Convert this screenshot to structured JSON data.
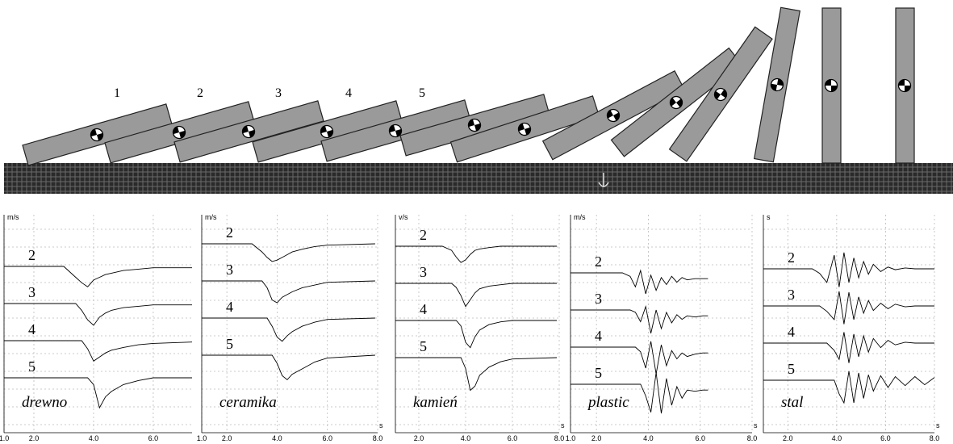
{
  "dominoes": {
    "labels": [
      "1",
      "2",
      "3",
      "4",
      "5"
    ]
  },
  "chart_data": [
    {
      "type": "line",
      "title": "drewno",
      "y_unit": "m/s",
      "color": "#000000",
      "x": [
        1.0,
        2.0,
        3.0,
        3.4,
        3.6,
        3.8,
        4.0,
        4.2,
        4.4,
        4.6,
        5.0,
        5.5,
        6.0,
        7.3
      ],
      "xlim": [
        1.0,
        7.3
      ],
      "ylim": [
        -2.5,
        0.5
      ],
      "xticks": [
        {
          "value": 1.0,
          "label": "1.0"
        },
        {
          "value": 2.0,
          "label": "2.0"
        },
        {
          "value": 4.0,
          "label": "4.0"
        },
        {
          "value": 6.0,
          "label": "6.0"
        }
      ],
      "series": [
        {
          "name": "2",
          "values": [
            0,
            0,
            0,
            -0.8,
            -1.2,
            -1.5,
            -1.0,
            -0.8,
            -0.6,
            -0.5,
            -0.3,
            -0.2,
            -0.1,
            -0.1
          ]
        },
        {
          "name": "3",
          "values": [
            0,
            0,
            0,
            0,
            -0.5,
            -1.2,
            -1.6,
            -1.0,
            -0.7,
            -0.5,
            -0.3,
            -0.2,
            -0.1,
            -0.1
          ]
        },
        {
          "name": "4",
          "values": [
            0,
            0,
            0,
            0,
            0,
            -0.6,
            -1.5,
            -1.2,
            -0.9,
            -0.7,
            -0.5,
            -0.3,
            -0.2,
            -0.1
          ]
        },
        {
          "name": "5",
          "values": [
            0,
            0,
            0,
            0,
            0,
            0,
            -0.5,
            -2.2,
            -1.4,
            -1.0,
            -0.5,
            -0.2,
            0,
            0
          ]
        }
      ]
    },
    {
      "type": "line",
      "title": "ceramika",
      "y_unit": "m/s",
      "x_unit": "s",
      "color": "#000000",
      "x": [
        1.0,
        2.0,
        3.0,
        3.4,
        3.6,
        3.8,
        4.0,
        4.2,
        4.4,
        4.6,
        5.0,
        5.5,
        6.0,
        7.9
      ],
      "xlim": [
        1.0,
        8.0
      ],
      "ylim": [
        -2.5,
        0.5
      ],
      "xticks": [
        {
          "value": 1.0,
          "label": "1.0"
        },
        {
          "value": 2.0,
          "label": "2.0"
        },
        {
          "value": 4.0,
          "label": "4.0"
        },
        {
          "value": 6.0,
          "label": "6.0"
        },
        {
          "value": 8.0,
          "label": "8.0"
        }
      ],
      "series": [
        {
          "name": "2",
          "values": [
            0,
            0,
            0,
            -0.6,
            -1.0,
            -1.3,
            -1.2,
            -1.0,
            -0.8,
            -0.6,
            -0.4,
            -0.2,
            -0.1,
            0
          ]
        },
        {
          "name": "3",
          "values": [
            0,
            0,
            0,
            0,
            -0.5,
            -1.4,
            -1.6,
            -1.2,
            -1.0,
            -0.8,
            -0.5,
            -0.3,
            -0.1,
            0
          ]
        },
        {
          "name": "4",
          "values": [
            0,
            0,
            0,
            0,
            0,
            -0.6,
            -1.4,
            -1.7,
            -1.3,
            -1.0,
            -0.6,
            -0.3,
            -0.1,
            0
          ]
        },
        {
          "name": "5",
          "values": [
            0,
            0,
            0,
            0,
            0,
            0,
            -0.6,
            -1.5,
            -1.8,
            -1.4,
            -1.0,
            -0.5,
            -0.2,
            0
          ]
        }
      ]
    },
    {
      "type": "line",
      "title": "kamień",
      "y_unit": "v/s",
      "x_unit": "s",
      "color": "#000000",
      "x": [
        1.0,
        2.0,
        3.0,
        3.4,
        3.6,
        3.8,
        4.0,
        4.2,
        4.4,
        4.6,
        5.0,
        5.5,
        6.0,
        7.9
      ],
      "xlim": [
        1.0,
        8.0
      ],
      "ylim": [
        -2.5,
        0.5
      ],
      "xticks": [
        {
          "value": 2.0,
          "label": "2.0"
        },
        {
          "value": 4.0,
          "label": "4.0"
        },
        {
          "value": 6.0,
          "label": "6.0"
        },
        {
          "value": 8.0,
          "label": "8.0"
        }
      ],
      "series": [
        {
          "name": "2",
          "values": [
            0,
            0,
            0,
            -0.3,
            -0.8,
            -1.2,
            -1.0,
            -0.6,
            -0.3,
            -0.2,
            -0.1,
            0,
            0,
            0
          ]
        },
        {
          "name": "3",
          "values": [
            0,
            0,
            0,
            0,
            -0.3,
            -0.9,
            -1.7,
            -1.2,
            -0.7,
            -0.4,
            -0.2,
            -0.1,
            0,
            0
          ]
        },
        {
          "name": "4",
          "values": [
            0,
            0,
            0,
            0,
            0,
            -0.4,
            -1.6,
            -2.0,
            -1.2,
            -0.7,
            -0.3,
            -0.1,
            0,
            0
          ]
        },
        {
          "name": "5",
          "values": [
            0,
            0,
            0,
            0,
            0,
            0,
            -0.8,
            -2.4,
            -2.1,
            -1.3,
            -0.7,
            -0.3,
            -0.1,
            0
          ]
        }
      ]
    },
    {
      "type": "line",
      "title": "plastic",
      "y_unit": "m/s",
      "x_unit": "s",
      "color": "#000000",
      "x": [
        1.0,
        2.0,
        3.0,
        3.3,
        3.5,
        3.7,
        3.9,
        4.1,
        4.3,
        4.5,
        4.7,
        4.9,
        5.1,
        5.3,
        5.5,
        5.8,
        6.1,
        6.3
      ],
      "xlim": [
        1.0,
        8.0
      ],
      "ylim": [
        -2.5,
        1.0
      ],
      "xticks": [
        {
          "value": 1.0,
          "label": "1.0"
        },
        {
          "value": 2.0,
          "label": "2.0"
        },
        {
          "value": 4.0,
          "label": "4.0"
        },
        {
          "value": 6.0,
          "label": "6.0"
        },
        {
          "value": 8.0,
          "label": "8.0"
        }
      ],
      "series": [
        {
          "name": "2",
          "values": [
            0,
            0,
            0,
            -0.3,
            -1.2,
            0.2,
            -1.8,
            -0.2,
            -1.5,
            -0.4,
            -1.0,
            -0.3,
            -0.8,
            -0.4,
            -0.6,
            -0.5,
            -0.5,
            -0.5
          ]
        },
        {
          "name": "3",
          "values": [
            0,
            0,
            0,
            0,
            -0.2,
            -1.0,
            0.3,
            -2.0,
            0,
            -1.6,
            -0.2,
            -1.1,
            -0.4,
            -0.8,
            -0.5,
            -0.6,
            -0.5,
            -0.5
          ]
        },
        {
          "name": "4",
          "values": [
            0,
            0,
            0,
            0,
            0,
            -0.4,
            -1.8,
            0.5,
            -2.3,
            0.2,
            -1.6,
            -0.3,
            -1.0,
            -0.5,
            -0.8,
            -0.6,
            -0.5,
            -0.5
          ]
        },
        {
          "name": "5",
          "values": [
            0,
            0,
            0,
            0,
            0,
            0,
            -1.0,
            -2.4,
            1.0,
            -2.5,
            0.5,
            -1.8,
            -0.2,
            -1.2,
            -0.5,
            -0.6,
            -0.5,
            -0.5
          ]
        }
      ]
    },
    {
      "type": "line",
      "title": "stal",
      "y_unit": "s",
      "x_unit": "s",
      "color": "#000000",
      "x": [
        1.0,
        2.0,
        3.0,
        3.3,
        3.6,
        3.9,
        4.1,
        4.3,
        4.5,
        4.7,
        4.9,
        5.1,
        5.3,
        5.5,
        5.8,
        6.1,
        6.4,
        6.8,
        7.2,
        7.6,
        8.0
      ],
      "xlim": [
        1.0,
        8.0
      ],
      "ylim": [
        -2.5,
        2.0
      ],
      "xticks": [
        {
          "value": 2.0,
          "label": "2.0"
        },
        {
          "value": 4.0,
          "label": "4.0"
        },
        {
          "value": 6.0,
          "label": "6.0"
        },
        {
          "value": 8.0,
          "label": "8.0"
        }
      ],
      "series": [
        {
          "name": "2",
          "values": [
            0,
            0,
            0,
            -0.5,
            -1.5,
            1.5,
            -2.0,
            1.8,
            -1.5,
            1.2,
            -1.0,
            0.8,
            -0.6,
            0.5,
            -0.3,
            0.2,
            -0.1,
            0.1,
            0,
            0,
            0
          ]
        },
        {
          "name": "3",
          "values": [
            0,
            0,
            0,
            0,
            -0.6,
            -1.5,
            1.6,
            -2.0,
            1.5,
            -1.5,
            1.0,
            -0.8,
            0.6,
            -0.5,
            0.3,
            -0.3,
            0.2,
            -0.1,
            0,
            0,
            0
          ]
        },
        {
          "name": "4",
          "values": [
            0,
            0,
            0,
            0,
            0,
            -0.8,
            -1.8,
            1.2,
            -2.2,
            1.0,
            -1.5,
            0.8,
            -1.0,
            0.5,
            -0.5,
            0.3,
            -0.2,
            0.1,
            0,
            0,
            0
          ]
        },
        {
          "name": "5",
          "values": [
            0,
            0,
            0,
            0,
            0,
            0,
            -1.5,
            -2.5,
            1.0,
            -2.5,
            0.8,
            -2.0,
            0.6,
            -1.2,
            0.5,
            -0.8,
            0.4,
            -0.6,
            0.4,
            -0.5,
            0.3
          ]
        }
      ]
    }
  ]
}
